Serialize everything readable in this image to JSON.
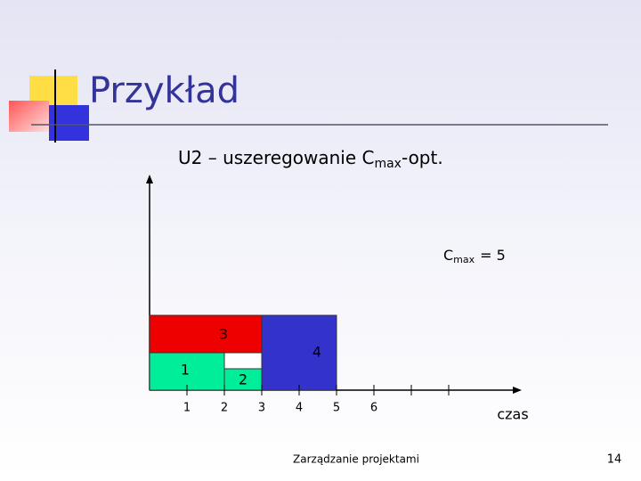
{
  "header": {
    "title": "Przykład"
  },
  "subtitle": {
    "main": "U2 – uszeregowanie C",
    "sub": "max",
    "rest": "-opt."
  },
  "cmax": {
    "main": "C",
    "sub": "max",
    "rest": "= 5"
  },
  "tasks": [
    {
      "label": "3",
      "start": 0,
      "end": 3,
      "color": "#ee0000"
    },
    {
      "label": "4",
      "start": 3,
      "end": 5,
      "color": "#3333cc"
    },
    {
      "label": "1",
      "start": 0,
      "end": 2,
      "color": "#00ee99"
    },
    {
      "label": "2",
      "start": 2,
      "end": 3,
      "color": "#00ee99"
    }
  ],
  "axis": {
    "ticks": [
      1,
      2,
      3,
      4,
      5,
      6
    ],
    "label": "czas"
  },
  "footer": {
    "text": "Zarządzanie projektami",
    "page": "14"
  }
}
